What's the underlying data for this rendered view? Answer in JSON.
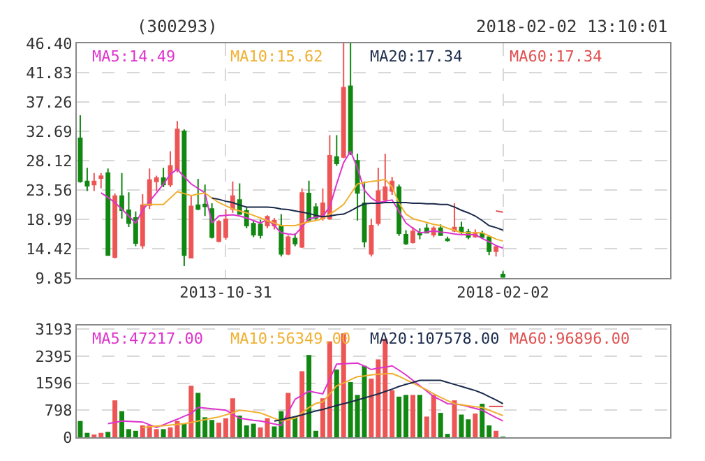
{
  "chart_data": [
    {
      "type": "candlestick",
      "title": "(300293)",
      "subtitle": "2018-02-02 13:10:01",
      "categories": [
        null,
        null,
        null,
        null,
        null,
        null,
        null,
        null,
        null,
        null,
        null,
        null,
        null,
        null,
        null,
        null,
        null,
        null,
        null,
        null,
        null,
        "2013-10-31",
        null,
        null,
        null,
        null,
        null,
        null,
        null,
        null,
        null,
        null,
        null,
        null,
        null,
        null,
        null,
        null,
        null,
        null,
        null,
        null,
        null,
        null,
        null,
        null,
        null,
        null,
        null,
        null,
        null,
        null,
        null,
        null,
        null,
        null,
        null,
        null,
        null,
        null,
        null,
        "2018-02-02"
      ],
      "ohlc": [
        [
          31.6,
          35.2,
          24.7,
          24.9
        ],
        [
          24.9,
          27.0,
          23.4,
          24.2
        ],
        [
          24.4,
          26.2,
          23.4,
          24.9
        ],
        [
          25.4,
          26.2,
          23.8,
          25.7
        ],
        [
          26.2,
          26.9,
          13.4,
          13.4
        ],
        [
          13.1,
          23.0,
          12.9,
          22.6
        ],
        [
          22.6,
          26.2,
          19.1,
          20.4
        ],
        [
          20.4,
          23.2,
          17.8,
          18.4
        ],
        [
          19.2,
          20.2,
          14.8,
          15.3
        ],
        [
          14.9,
          22.9,
          14.4,
          21.2
        ],
        [
          21.2,
          26.9,
          20.6,
          25.1
        ],
        [
          24.9,
          25.8,
          23.4,
          25.4
        ],
        [
          25.4,
          27.0,
          24.0,
          24.4
        ],
        [
          24.4,
          29.6,
          24.0,
          27.3
        ],
        [
          26.7,
          34.3,
          26.3,
          33.0
        ],
        [
          32.7,
          33.0,
          11.7,
          13.4
        ],
        [
          13.0,
          22.6,
          13.0,
          21.0
        ],
        [
          21.2,
          25.3,
          20.4,
          20.6
        ],
        [
          21.3,
          24.4,
          19.5,
          21.0
        ],
        [
          20.6,
          21.5,
          16.0,
          16.2
        ],
        [
          15.6,
          18.9,
          15.4,
          18.6
        ],
        [
          16.2,
          20.6,
          15.8,
          19.0
        ],
        [
          20.6,
          24.9,
          20.0,
          22.6
        ],
        [
          22.0,
          24.6,
          19.8,
          19.8
        ],
        [
          20.3,
          20.8,
          17.6,
          18.0
        ],
        [
          18.3,
          18.7,
          16.2,
          16.6
        ],
        [
          18.2,
          18.9,
          16.0,
          16.5
        ],
        [
          18.0,
          19.6,
          17.6,
          19.4
        ],
        [
          18.0,
          19.2,
          17.4,
          18.8
        ],
        [
          18.0,
          19.8,
          13.2,
          13.6
        ],
        [
          13.6,
          16.5,
          13.4,
          16.2
        ],
        [
          16.0,
          16.8,
          14.8,
          15.2
        ],
        [
          14.7,
          23.8,
          14.5,
          23.1
        ],
        [
          23.0,
          25.0,
          18.6,
          18.9
        ],
        [
          20.9,
          21.5,
          18.9,
          19.2
        ],
        [
          19.1,
          23.8,
          18.8,
          21.5
        ],
        [
          19.1,
          32.1,
          18.9,
          28.9
        ],
        [
          28.7,
          32.1,
          27.3,
          27.7
        ],
        [
          28.7,
          46.4,
          28.5,
          39.5
        ],
        [
          39.7,
          46.4,
          29.0,
          29.2
        ],
        [
          28.1,
          29.2,
          18.8,
          23.1
        ],
        [
          21.5,
          24.9,
          14.6,
          15.5
        ],
        [
          13.6,
          19.1,
          13.2,
          18.0
        ],
        [
          18.4,
          27.0,
          18.0,
          23.4
        ],
        [
          22.0,
          29.2,
          21.5,
          24.0
        ],
        [
          23.4,
          25.6,
          22.8,
          24.9
        ],
        [
          24.0,
          24.4,
          16.4,
          16.8
        ],
        [
          16.6,
          17.3,
          15.0,
          15.2
        ],
        [
          15.4,
          17.8,
          15.2,
          17.1
        ],
        [
          16.8,
          17.6,
          15.9,
          16.6
        ],
        [
          17.6,
          18.3,
          16.8,
          16.9
        ],
        [
          16.6,
          17.9,
          16.2,
          17.6
        ],
        [
          17.6,
          18.2,
          16.4,
          16.5
        ],
        [
          15.9,
          16.3,
          15.5,
          15.7
        ],
        [
          17.2,
          21.5,
          17.0,
          17.7
        ],
        [
          17.7,
          18.6,
          16.6,
          17.0
        ],
        [
          17.0,
          17.5,
          15.9,
          16.2
        ],
        [
          16.3,
          17.4,
          16.1,
          16.9
        ],
        [
          16.8,
          17.2,
          16.0,
          16.2
        ],
        [
          16.2,
          16.5,
          13.4,
          14.0
        ],
        [
          14.0,
          14.8,
          13.2,
          14.7
        ],
        [
          10.4,
          10.9,
          9.9,
          10.0
        ]
      ],
      "colors": [
        "#118811",
        "#118811",
        "#ee5555",
        "#ee5555",
        "#118811",
        "#ee5555",
        "#118811",
        "#118811",
        "#118811",
        "#ee5555",
        "#ee5555",
        "#ee5555",
        "#118811",
        "#ee5555",
        "#ee5555",
        "#118811",
        "#ee5555",
        "#118811",
        "#118811",
        "#118811",
        "#ee5555",
        "#ee5555",
        "#ee5555",
        "#118811",
        "#118811",
        "#118811",
        "#118811",
        "#ee5555",
        "#ee5555",
        "#118811",
        "#ee5555",
        "#118811",
        "#ee5555",
        "#118811",
        "#118811",
        "#ee5555",
        "#ee5555",
        "#118811",
        "#ee5555",
        "#118811",
        "#118811",
        "#118811",
        "#ee5555",
        "#ee5555",
        "#ee5555",
        "#ee5555",
        "#118811",
        "#118811",
        "#ee5555",
        "#118811",
        "#118811",
        "#ee5555",
        "#118811",
        "#118811",
        "#ee5555",
        "#118811",
        "#118811",
        "#ee5555",
        "#118811",
        "#118811",
        "#ee5555",
        "#118811"
      ],
      "series": [
        {
          "type": "line",
          "name": "MA5:14.49",
          "color": "#dd33cc",
          "values": [
            null,
            null,
            null,
            23.1,
            22.4,
            21.6,
            20.6,
            19.5,
            18.4,
            20.4,
            21.8,
            23.1,
            24.5,
            26.0,
            26.8,
            25.6,
            24.5,
            23.8,
            23.1,
            18.4,
            19.5,
            19.6,
            19.7,
            19.5,
            19.2,
            18.8,
            18.4,
            19.0,
            18.0,
            16.9,
            16.7,
            16.6,
            17.8,
            19.1,
            19.3,
            19.5,
            20.9,
            24.5,
            27.8,
            29.6,
            27.0,
            23.5,
            22.3,
            21.6,
            21.8,
            22.0,
            20.2,
            18.4,
            17.6,
            16.9,
            17.0,
            17.2,
            17.0,
            16.9,
            16.7,
            16.6,
            16.6,
            16.6,
            16.0,
            15.5,
            14.9,
            14.5
          ]
        },
        {
          "type": "line",
          "name": "MA10:15.62",
          "color": "#f0b030",
          "values": [
            null,
            null,
            null,
            null,
            null,
            null,
            null,
            null,
            null,
            21.3,
            21.3,
            21.3,
            21.3,
            22.3,
            23.3,
            23.0,
            22.7,
            22.9,
            23.1,
            22.3,
            21.6,
            21.1,
            20.6,
            20.3,
            20.0,
            19.6,
            19.2,
            18.8,
            18.4,
            18.0,
            18.0,
            18.0,
            18.3,
            18.6,
            18.8,
            19.1,
            19.8,
            20.5,
            21.3,
            22.9,
            24.5,
            24.7,
            24.9,
            25.0,
            25.2,
            24.0,
            21.5,
            19.8,
            19.1,
            18.8,
            18.5,
            18.2,
            18.0,
            17.6,
            17.3,
            16.9,
            16.9,
            16.9,
            16.9,
            16.4,
            15.9,
            15.6
          ]
        },
        {
          "type": "line",
          "name": "MA20:17.34",
          "color": "#1a2a4a",
          "values": [
            null,
            null,
            null,
            null,
            null,
            null,
            null,
            null,
            null,
            null,
            null,
            null,
            null,
            null,
            null,
            null,
            null,
            null,
            null,
            22.3,
            22.1,
            21.8,
            21.6,
            21.2,
            20.9,
            20.9,
            20.9,
            20.9,
            20.8,
            20.6,
            20.5,
            20.3,
            20.1,
            19.9,
            19.6,
            19.4,
            19.5,
            19.7,
            19.8,
            20.3,
            20.9,
            21.4,
            21.5,
            21.5,
            21.6,
            21.6,
            21.6,
            21.6,
            21.5,
            21.5,
            21.4,
            21.4,
            21.3,
            21.3,
            20.9,
            20.4,
            20.0,
            19.5,
            18.8,
            18.0,
            17.7,
            17.3
          ]
        },
        {
          "type": "line",
          "name": "MA60:17.34",
          "color": "#e05050",
          "values": [
            null,
            null,
            null,
            null,
            null,
            null,
            null,
            null,
            null,
            null,
            null,
            null,
            null,
            null,
            null,
            null,
            null,
            null,
            null,
            null,
            null,
            null,
            null,
            null,
            null,
            null,
            null,
            null,
            null,
            null,
            null,
            null,
            null,
            null,
            null,
            null,
            null,
            null,
            null,
            null,
            null,
            null,
            null,
            null,
            null,
            null,
            null,
            null,
            null,
            null,
            null,
            null,
            null,
            null,
            null,
            null,
            null,
            null,
            null,
            null,
            20.3,
            20.1
          ]
        }
      ],
      "ylim": [
        9.85,
        46.4
      ],
      "yticks": [
        {
          "value": 9.85,
          "label": "9.85"
        },
        {
          "value": 14.42,
          "label": "14.42"
        },
        {
          "value": 18.99,
          "label": "18.99"
        },
        {
          "value": 23.56,
          "label": "23.56"
        },
        {
          "value": 28.12,
          "label": "28.12"
        },
        {
          "value": 32.69,
          "label": "32.69"
        },
        {
          "value": 37.26,
          "label": "37.26"
        },
        {
          "value": 41.83,
          "label": "41.83"
        },
        {
          "value": 46.4,
          "label": "46.40"
        }
      ],
      "grid": true,
      "legend": "top"
    },
    {
      "type": "bar",
      "categories": [
        null,
        null,
        null,
        null,
        null,
        null,
        null,
        null,
        null,
        null,
        null,
        null,
        null,
        null,
        null,
        null,
        null,
        null,
        null,
        null,
        null,
        null,
        null,
        null,
        null,
        null,
        null,
        null,
        null,
        null,
        null,
        null,
        null,
        null,
        null,
        null,
        null,
        null,
        null,
        null,
        null,
        null,
        null,
        null,
        null,
        null,
        null,
        null,
        null,
        null,
        null,
        null,
        null,
        null,
        null,
        null,
        null,
        null,
        null,
        null,
        null,
        null
      ],
      "values": [
        480,
        130,
        80,
        130,
        160,
        1090,
        770,
        240,
        190,
        350,
        350,
        240,
        240,
        290,
        480,
        400,
        1520,
        1310,
        590,
        510,
        430,
        560,
        1150,
        640,
        350,
        400,
        290,
        560,
        320,
        770,
        1310,
        590,
        1950,
        2430,
        190,
        1150,
        2830,
        2000,
        3070,
        1630,
        1250,
        2110,
        1730,
        2300,
        2910,
        1390,
        1200,
        1250,
        1250,
        1250,
        610,
        1250,
        720,
        100,
        1090,
        670,
        530,
        700,
        990,
        350,
        190,
        20
      ],
      "colors": [
        "#118811",
        "#118811",
        "#ee5555",
        "#ee5555",
        "#118811",
        "#ee5555",
        "#118811",
        "#118811",
        "#118811",
        "#ee5555",
        "#ee5555",
        "#ee5555",
        "#118811",
        "#ee5555",
        "#ee5555",
        "#118811",
        "#ee5555",
        "#118811",
        "#118811",
        "#118811",
        "#ee5555",
        "#ee5555",
        "#ee5555",
        "#118811",
        "#118811",
        "#118811",
        "#ee5555",
        "#ee5555",
        "#118811",
        "#118811",
        "#ee5555",
        "#118811",
        "#ee5555",
        "#118811",
        "#118811",
        "#ee5555",
        "#ee5555",
        "#118811",
        "#ee5555",
        "#118811",
        "#118811",
        "#118811",
        "#ee5555",
        "#ee5555",
        "#ee5555",
        "#ee5555",
        "#118811",
        "#118811",
        "#ee5555",
        "#118811",
        "#ee5555",
        "#ee5555",
        "#118811",
        "#118811",
        "#ee5555",
        "#118811",
        "#118811",
        "#ee5555",
        "#118811",
        "#118811",
        "#ee5555",
        "#118811"
      ],
      "series": [
        {
          "type": "line",
          "name": "MA5:47217.00",
          "color": "#dd33cc",
          "values": [
            null,
            null,
            null,
            null,
            400,
            440,
            480,
            470,
            460,
            450,
            370,
            290,
            370,
            450,
            530,
            620,
            700,
            880,
            860,
            840,
            820,
            800,
            680,
            560,
            530,
            500,
            480,
            440,
            390,
            350,
            740,
            1120,
            1240,
            1360,
            1320,
            1280,
            1720,
            2160,
            2170,
            2180,
            2190,
            2100,
            2000,
            2040,
            2070,
            2110,
            1980,
            1840,
            1680,
            1520,
            1360,
            1200,
            1100,
            990,
            980,
            960,
            900,
            850,
            800,
            690,
            580,
            480
          ]
        },
        {
          "type": "line",
          "name": "MA10:56349.00",
          "color": "#f0b030",
          "values": [
            null,
            null,
            null,
            null,
            null,
            null,
            null,
            null,
            null,
            290,
            310,
            330,
            340,
            360,
            380,
            400,
            440,
            480,
            520,
            560,
            600,
            660,
            720,
            800,
            780,
            750,
            720,
            640,
            560,
            480,
            520,
            560,
            720,
            880,
            1000,
            1040,
            1280,
            1520,
            1600,
            1700,
            1790,
            1810,
            1840,
            1860,
            1870,
            1880,
            1800,
            1700,
            1600,
            1500,
            1400,
            1280,
            1180,
            1080,
            990,
            960,
            930,
            900,
            880,
            800,
            720,
            640
          ]
        },
        {
          "type": "line",
          "name": "MA20:107578.00",
          "color": "#1a2a4a",
          "values": [
            null,
            null,
            null,
            null,
            null,
            null,
            null,
            null,
            null,
            null,
            null,
            null,
            null,
            null,
            null,
            null,
            null,
            null,
            null,
            null,
            null,
            null,
            null,
            null,
            null,
            null,
            null,
            null,
            480,
            510,
            560,
            610,
            660,
            720,
            780,
            820,
            880,
            940,
            990,
            1040,
            1100,
            1160,
            1220,
            1280,
            1350,
            1420,
            1500,
            1560,
            1620,
            1680,
            1680,
            1680,
            1680,
            1620,
            1560,
            1500,
            1440,
            1380,
            1300,
            1200,
            1100,
            990
          ]
        },
        {
          "type": "line",
          "name": "MA60:96896.00",
          "color": "#e05050",
          "values": [
            null,
            null,
            null,
            null,
            null,
            null,
            null,
            null,
            null,
            null,
            null,
            null,
            null,
            null,
            null,
            null,
            null,
            null,
            null,
            null,
            null,
            null,
            null,
            null,
            null,
            null,
            null,
            null,
            null,
            null,
            null,
            null,
            null,
            null,
            null,
            null,
            null,
            null,
            null,
            null,
            null,
            null,
            null,
            null,
            null,
            null,
            null,
            null,
            null,
            null,
            null,
            null,
            null,
            null,
            null,
            null,
            null,
            null,
            null,
            910,
            910,
            910
          ]
        }
      ],
      "ylim": [
        0,
        3300
      ],
      "yticks": [
        0,
        798,
        1596,
        2395,
        3193
      ],
      "grid": true,
      "legend": "top",
      "tick_labels": "y"
    }
  ]
}
